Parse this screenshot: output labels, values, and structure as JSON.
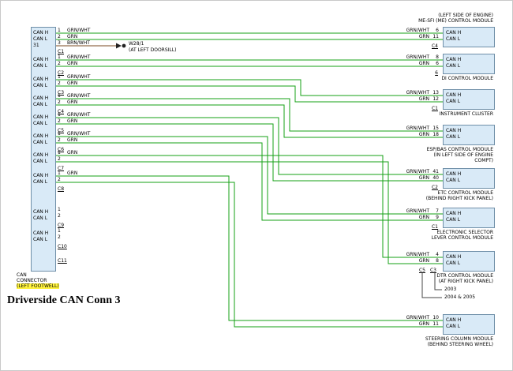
{
  "title": "Driverside CAN Conn 3",
  "colors": {
    "wire_green": "#16a016",
    "wire_brown": "#7a4a21",
    "callout_black": "#444444",
    "module_fill": "#d9eaf7",
    "module_border": "#6f8fa8",
    "highlight": "#fff33e"
  },
  "splice": {
    "name": "W28/1",
    "location": "(AT LEFT DOORSILL)"
  },
  "left_connector": {
    "caption_lines": [
      "CAN",
      "CONNECTOR",
      "(LEFT FOOTWELL)"
    ],
    "groups": [
      {
        "connector": "C1",
        "rows": [
          {
            "signal": "CAN H",
            "pin": "1",
            "wire_label": "GRN/WHT"
          },
          {
            "signal": "CAN L",
            "pin": "2",
            "wire_label": "GRN"
          },
          {
            "signal": "31",
            "pin": "3",
            "wire_label": "BRN/WHT"
          }
        ]
      },
      {
        "connector": "C2",
        "rows": [
          {
            "signal": "CAN H",
            "pin": "1",
            "wire_label": "GRN/WHT"
          },
          {
            "signal": "CAN L",
            "pin": "2",
            "wire_label": "GRN"
          }
        ]
      },
      {
        "connector": "C3",
        "rows": [
          {
            "signal": "CAN H",
            "pin": "1",
            "wire_label": "GRN/WHT"
          },
          {
            "signal": "CAN L",
            "pin": "2",
            "wire_label": "GRN"
          }
        ]
      },
      {
        "connector": "C4",
        "rows": [
          {
            "signal": "CAN H",
            "pin": "1",
            "wire_label": "GRN/WHT"
          },
          {
            "signal": "CAN L",
            "pin": "2",
            "wire_label": "GRN"
          }
        ]
      },
      {
        "connector": "C5",
        "rows": [
          {
            "signal": "CAN H",
            "pin": "1",
            "wire_label": "GRN/WHT"
          },
          {
            "signal": "CAN L",
            "pin": "2",
            "wire_label": "GRN"
          }
        ]
      },
      {
        "connector": "C6",
        "rows": [
          {
            "signal": "CAN H",
            "pin": "1",
            "wire_label": "GRN/WHT"
          },
          {
            "signal": "CAN L",
            "pin": "2",
            "wire_label": "GRN"
          }
        ]
      },
      {
        "connector": "C7",
        "rows": [
          {
            "signal": "CAN H",
            "pin": "1",
            "wire_label": "GRN"
          },
          {
            "signal": "CAN L",
            "pin": "2",
            "wire_label": ""
          }
        ]
      },
      {
        "connector": "C8",
        "rows": [
          {
            "signal": "CAN H",
            "pin": "1",
            "wire_label": "GRN"
          },
          {
            "signal": "CAN L",
            "pin": "2",
            "wire_label": ""
          }
        ]
      },
      {
        "connector": "C9",
        "rows": [
          {
            "signal": "CAN H",
            "pin": "1",
            "wire_label": ""
          },
          {
            "signal": "CAN L",
            "pin": "2",
            "wire_label": ""
          }
        ]
      },
      {
        "connector": "C10",
        "rows": [
          {
            "signal": "CAN H",
            "pin": "1",
            "wire_label": ""
          },
          {
            "signal": "CAN L",
            "pin": "2",
            "wire_label": ""
          }
        ]
      },
      {
        "connector": "C11",
        "rows": []
      }
    ]
  },
  "modules": [
    {
      "name_lines": [
        "(LEFT SIDE OF ENGINE)",
        "ME-SFI (ME) CONTROL MODULE"
      ],
      "name_position": "above",
      "rows": [
        {
          "wire_label": "GRN/WHT",
          "pin": "6",
          "signal": "CAN H"
        },
        {
          "wire_label": "GRN",
          "pin": "11",
          "signal": "CAN L"
        }
      ],
      "connectors": [
        "C4"
      ]
    },
    {
      "name_lines": [
        "DI CONTROL MODULE"
      ],
      "name_position": "below",
      "rows": [
        {
          "wire_label": "GRN/WHT",
          "pin": "8",
          "signal": "CAN H"
        },
        {
          "wire_label": "GRN",
          "pin": "6",
          "signal": "CAN L"
        }
      ],
      "connectors": [
        "6"
      ]
    },
    {
      "name_lines": [
        "INSTRUMENT CLUSTER"
      ],
      "name_position": "below",
      "rows": [
        {
          "wire_label": "GRN/WHT",
          "pin": "13",
          "signal": "CAN H"
        },
        {
          "wire_label": "GRN",
          "pin": "12",
          "signal": "CAN L"
        }
      ],
      "connectors": [
        "C1"
      ]
    },
    {
      "name_lines": [
        "ESP/BAS CONTROL MODULE",
        "(IN LEFT SIDE OF ENGINE",
        "COMPT)"
      ],
      "name_position": "below",
      "rows": [
        {
          "wire_label": "GRN/WHT",
          "pin": "15",
          "signal": "CAN H"
        },
        {
          "wire_label": "GRN",
          "pin": "18",
          "signal": "CAN L"
        }
      ],
      "connectors": []
    },
    {
      "name_lines": [
        "ETC CONTROL MODULE",
        "(BEHIND RIGHT KICK PANEL)"
      ],
      "name_position": "below",
      "rows": [
        {
          "wire_label": "GRN/WHT",
          "pin": "41",
          "signal": "CAN H"
        },
        {
          "wire_label": "GRN",
          "pin": "40",
          "signal": "CAN L"
        }
      ],
      "connectors": [
        "C2"
      ]
    },
    {
      "name_lines": [
        "ELECTRONIC SELECTOR",
        "LEVER CONTROL MODULE"
      ],
      "name_position": "below",
      "rows": [
        {
          "wire_label": "GRN/WHT",
          "pin": "7",
          "signal": "CAN H"
        },
        {
          "wire_label": "GRN",
          "pin": "9",
          "signal": "CAN L"
        }
      ],
      "connectors": [
        "C1"
      ]
    },
    {
      "name_lines": [
        "DTR CONTROL MODULE",
        "(AT RIGHT KICK PANEL)"
      ],
      "name_position": "below",
      "rows": [
        {
          "wire_label": "GRN/WHT",
          "pin": "4",
          "signal": "CAN H"
        },
        {
          "wire_label": "GRN",
          "pin": "8",
          "signal": "CAN L"
        }
      ],
      "connectors": [
        "C5",
        "C3"
      ],
      "year_notes": [
        "2003",
        "2004 & 2005"
      ]
    },
    {
      "name_lines": [
        "STEERING COLUMN MODULE",
        "(BEHIND STEERING WHEEL)"
      ],
      "name_position": "below",
      "rows": [
        {
          "wire_label": "GRN/WHT",
          "pin": "10",
          "signal": "CAN H"
        },
        {
          "wire_label": "GRN",
          "pin": "11",
          "signal": "CAN L"
        }
      ],
      "connectors": []
    }
  ]
}
